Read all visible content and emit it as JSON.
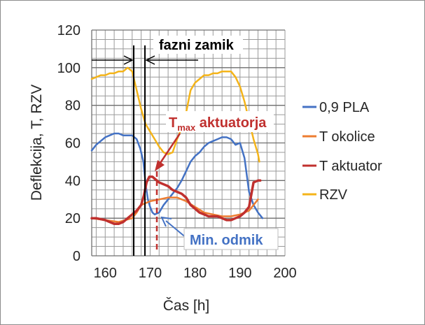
{
  "chart_data": {
    "type": "line",
    "xlabel": "Čas [h]",
    "ylabel": "Deflekcija, T, RZV",
    "xlim": [
      157,
      200
    ],
    "ylim": [
      0,
      120
    ],
    "x_ticks": [
      160,
      170,
      180,
      190,
      200
    ],
    "y_ticks": [
      0,
      20,
      40,
      60,
      80,
      100,
      120
    ],
    "grid": true,
    "legend_position": "right",
    "series": [
      {
        "name": "0,9 PLA",
        "color": "#4472c4",
        "points": [
          [
            157,
            56
          ],
          [
            158,
            59
          ],
          [
            159,
            61
          ],
          [
            160,
            63
          ],
          [
            161,
            64
          ],
          [
            162,
            65
          ],
          [
            163,
            65
          ],
          [
            164,
            64
          ],
          [
            165,
            64
          ],
          [
            166,
            64
          ],
          [
            167,
            62
          ],
          [
            167.8,
            57
          ],
          [
            168.5,
            50
          ],
          [
            169,
            38
          ],
          [
            169.5,
            30
          ],
          [
            170,
            26
          ],
          [
            170.5,
            23
          ],
          [
            171,
            22
          ],
          [
            172,
            23
          ],
          [
            173,
            27
          ],
          [
            174,
            30
          ],
          [
            175,
            33
          ],
          [
            176,
            36
          ],
          [
            177,
            40
          ],
          [
            178,
            45
          ],
          [
            179,
            50
          ],
          [
            180,
            53
          ],
          [
            181,
            55
          ],
          [
            182,
            58
          ],
          [
            183,
            60
          ],
          [
            184,
            61
          ],
          [
            185,
            62
          ],
          [
            186,
            63
          ],
          [
            187,
            63
          ],
          [
            188,
            62
          ],
          [
            189,
            59
          ],
          [
            190,
            60
          ],
          [
            191,
            52
          ],
          [
            192,
            34
          ],
          [
            193,
            27
          ],
          [
            194,
            23
          ],
          [
            195,
            20
          ]
        ]
      },
      {
        "name": "T okolice",
        "color": "#ed7d31",
        "points": [
          [
            157,
            20
          ],
          [
            160,
            19
          ],
          [
            163,
            18
          ],
          [
            166,
            20
          ],
          [
            167,
            23
          ],
          [
            168,
            27
          ],
          [
            169,
            28
          ],
          [
            170,
            29
          ],
          [
            172,
            30
          ],
          [
            174,
            31
          ],
          [
            176,
            31
          ],
          [
            178,
            29
          ],
          [
            180,
            26
          ],
          [
            182,
            23
          ],
          [
            184,
            22
          ],
          [
            186,
            21
          ],
          [
            188,
            21
          ],
          [
            190,
            22
          ],
          [
            192,
            24
          ],
          [
            194,
            30
          ]
        ]
      },
      {
        "name": "T aktuator",
        "color": "#c0302e",
        "points": [
          [
            157,
            20
          ],
          [
            158,
            20
          ],
          [
            160,
            19
          ],
          [
            161,
            18
          ],
          [
            162,
            17
          ],
          [
            163,
            17
          ],
          [
            164,
            18
          ],
          [
            165,
            20
          ],
          [
            166,
            22
          ],
          [
            167,
            24
          ],
          [
            168,
            27
          ],
          [
            168.6,
            32
          ],
          [
            169.2,
            39
          ],
          [
            169.8,
            42
          ],
          [
            170.5,
            42
          ],
          [
            171,
            41
          ],
          [
            172,
            39
          ],
          [
            173,
            38
          ],
          [
            174,
            37
          ],
          [
            175,
            35
          ],
          [
            176,
            34
          ],
          [
            177,
            33
          ],
          [
            178,
            31
          ],
          [
            179,
            27
          ],
          [
            180,
            25
          ],
          [
            181,
            23
          ],
          [
            182,
            22
          ],
          [
            183,
            21
          ],
          [
            184,
            21
          ],
          [
            185,
            21
          ],
          [
            186,
            20
          ],
          [
            187,
            19
          ],
          [
            188,
            19
          ],
          [
            189,
            20
          ],
          [
            190,
            21
          ],
          [
            191,
            23
          ],
          [
            192,
            26
          ],
          [
            193,
            39
          ],
          [
            194,
            40
          ],
          [
            194.5,
            40
          ]
        ]
      },
      {
        "name": "RZV",
        "color": "#f4b41a",
        "points": [
          [
            157,
            94
          ],
          [
            158,
            95
          ],
          [
            159,
            96
          ],
          [
            160,
            96
          ],
          [
            161,
            97
          ],
          [
            162,
            97
          ],
          [
            163,
            98
          ],
          [
            164,
            98
          ],
          [
            165,
            100
          ],
          [
            166,
            98
          ],
          [
            167,
            88
          ],
          [
            168,
            78
          ],
          [
            169,
            70
          ],
          [
            170,
            66
          ],
          [
            171,
            62
          ],
          [
            172,
            58
          ],
          [
            173,
            55
          ],
          [
            174,
            54
          ],
          [
            175,
            55
          ],
          [
            176,
            62
          ],
          [
            177,
            68
          ],
          [
            178,
            76
          ],
          [
            179,
            88
          ],
          [
            180,
            92
          ],
          [
            181,
            94
          ],
          [
            182,
            96
          ],
          [
            183,
            96
          ],
          [
            184,
            97
          ],
          [
            185,
            97
          ],
          [
            186,
            98
          ],
          [
            187,
            98
          ],
          [
            188,
            98
          ],
          [
            189,
            95
          ],
          [
            190,
            90
          ],
          [
            191,
            82
          ],
          [
            192,
            72
          ],
          [
            193,
            62
          ],
          [
            194,
            54
          ],
          [
            194.3,
            50
          ]
        ]
      }
    ],
    "annotations": {
      "phase_shift": "fazni zamik",
      "tmax_main": "T",
      "tmax_sub": "max",
      "tmax_rest": " aktuatorja",
      "min_offset": "Min. odmik"
    },
    "annotation_colors": {
      "phase_shift": "#000000",
      "tmax": "#c0302e",
      "min_offset": "#4472c4"
    }
  }
}
